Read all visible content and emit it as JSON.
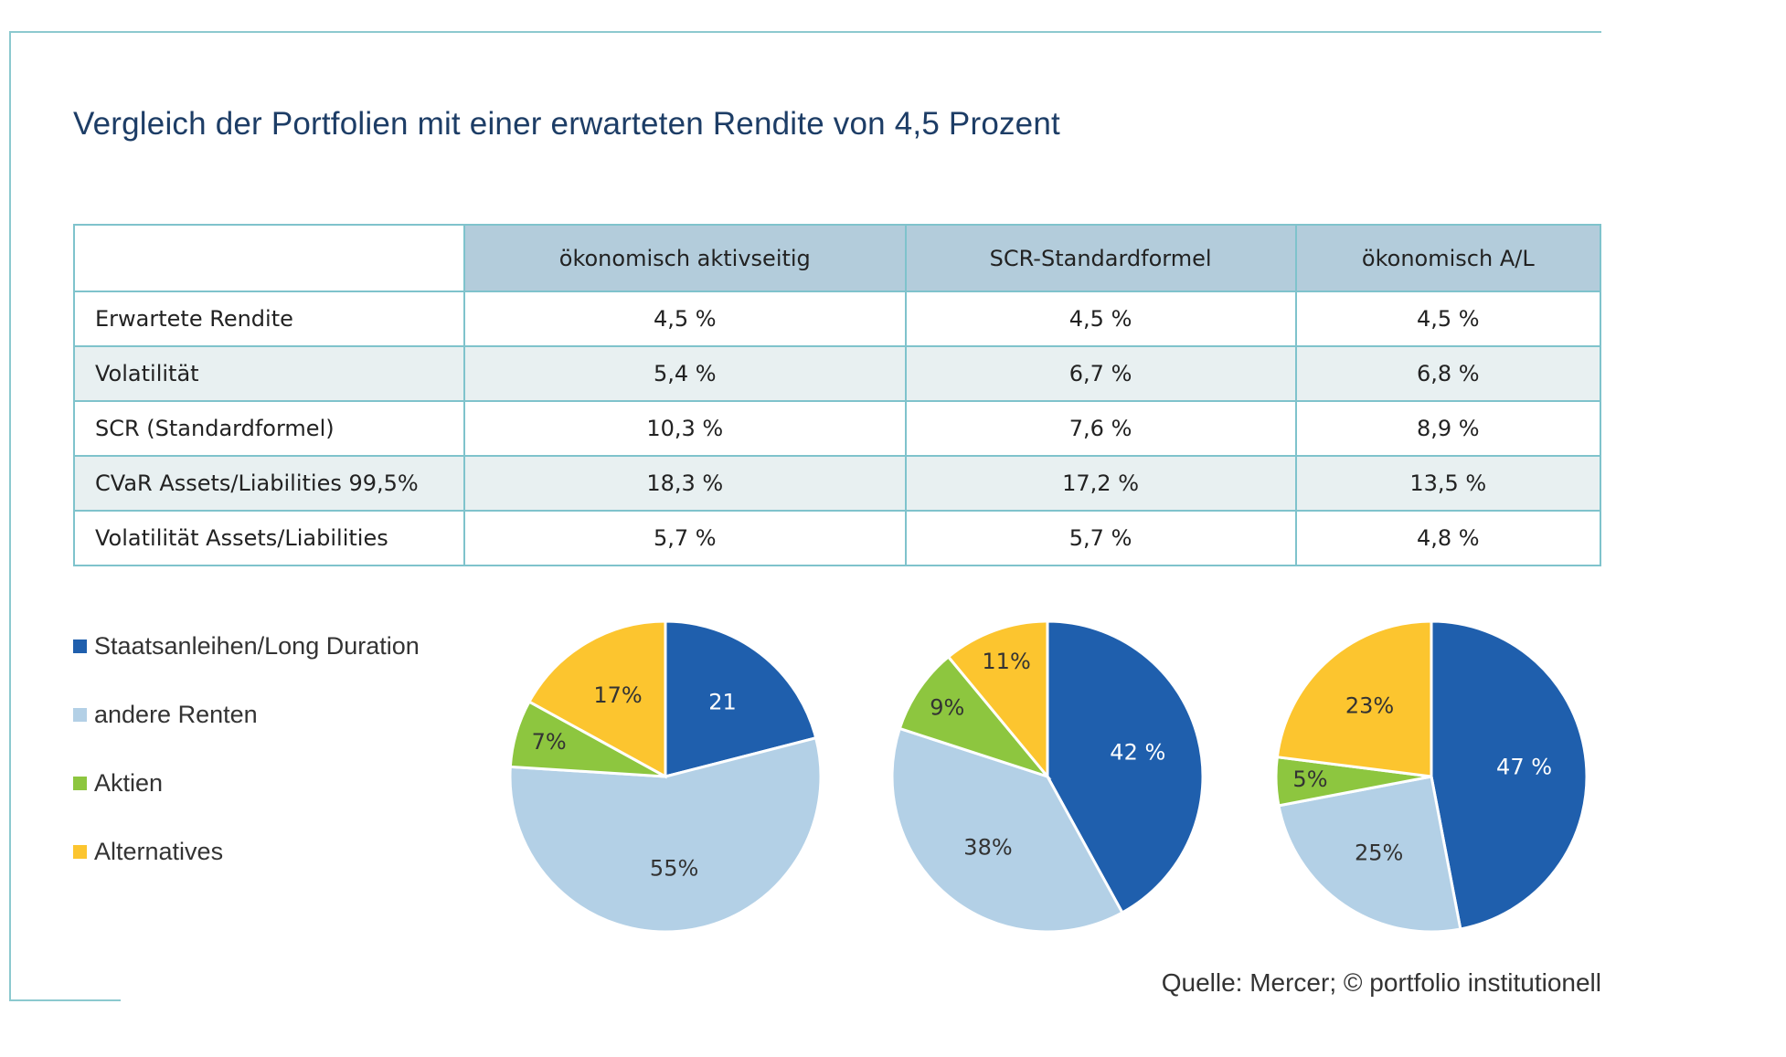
{
  "title": "Vergleich der Portfolien mit einer erwarteten Rendite von 4,5 Prozent",
  "table": {
    "columns": [
      "ökonomisch aktivseitig",
      "SCR-Standardformel",
      "ökonomisch A/L"
    ],
    "rows": [
      {
        "label": "Erwartete Rendite",
        "values": [
          "4,5 %",
          "4,5 %",
          "4,5 %"
        ]
      },
      {
        "label": "Volatilität",
        "values": [
          "5,4 %",
          "6,7 %",
          "6,8 %"
        ]
      },
      {
        "label": "SCR (Standardformel)",
        "values": [
          "10,3 %",
          "7,6 %",
          "8,9 %"
        ]
      },
      {
        "label": "CVaR Assets/Liabilities 99,5%",
        "values": [
          "18,3 %",
          "17,2 %",
          "13,5 %"
        ]
      },
      {
        "label": "Volatilität Assets/Liabilities",
        "values": [
          "5,7 %",
          "5,7 %",
          "4,8 %"
        ]
      }
    ]
  },
  "legend": [
    {
      "label": "Staatsanleihen/Long Duration",
      "color": "#1f5fad"
    },
    {
      "label": "andere Renten",
      "color": "#b3d0e6"
    },
    {
      "label": "Aktien",
      "color": "#8dc63f"
    },
    {
      "label": "Alternatives",
      "color": "#fcc52f"
    }
  ],
  "chart_data": [
    {
      "type": "pie",
      "categories": [
        "Staatsanleihen/Long Duration",
        "andere Renten",
        "Aktien",
        "Alternatives"
      ],
      "values": [
        21,
        55,
        7,
        17
      ],
      "labels": [
        "21",
        "55%",
        "7%",
        "17%"
      ]
    },
    {
      "type": "pie",
      "categories": [
        "Staatsanleihen/Long Duration",
        "andere Renten",
        "Aktien",
        "Alternatives"
      ],
      "values": [
        42,
        38,
        9,
        11
      ],
      "labels": [
        "42 %",
        "38%",
        "9%",
        "11%"
      ]
    },
    {
      "type": "pie",
      "categories": [
        "Staatsanleihen/Long Duration",
        "andere Renten",
        "Aktien",
        "Alternatives"
      ],
      "values": [
        47,
        25,
        5,
        23
      ],
      "labels": [
        "47 %",
        "25%",
        "5%",
        "23%"
      ]
    }
  ],
  "source": "Quelle: Mercer; © portfolio institutionell"
}
